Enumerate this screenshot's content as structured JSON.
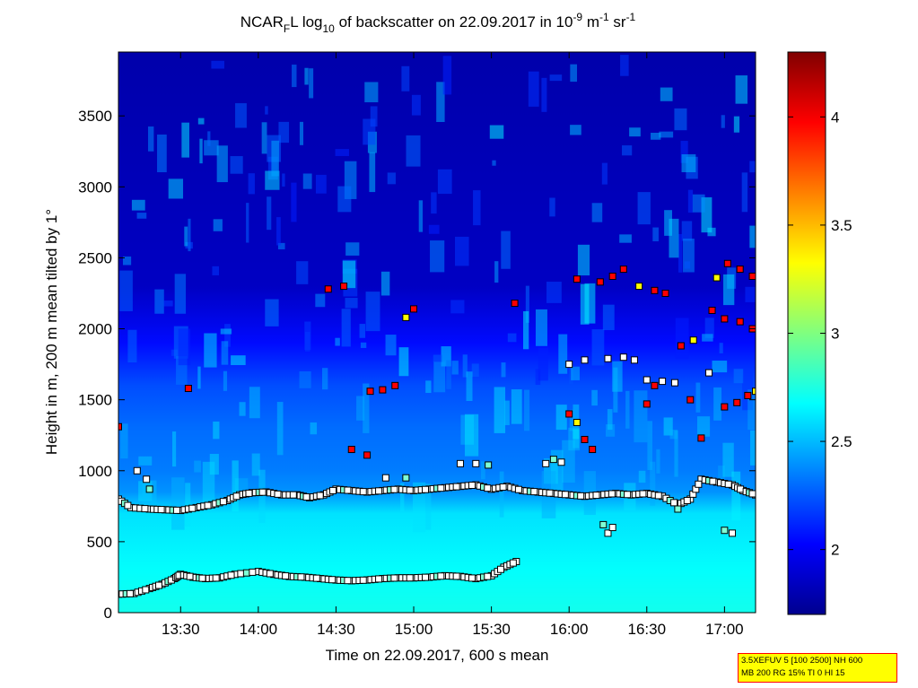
{
  "chart_data": {
    "type": "heatmap",
    "title": {
      "part1": "NCAR",
      "sub1": "F",
      "part2": "L log",
      "sub2": "10",
      "part3": " of backscatter on 22.09.2017 in 10",
      "sup1": "-9",
      "part4": " m",
      "sup2": "-1",
      "part5": " sr",
      "sup3": "-1"
    },
    "xlabel": "Time on 22.09.2017, 600 s mean",
    "ylabel": "Height in m, 200 m mean tilted by 1°",
    "xlim_hours": [
      13.1,
      17.2
    ],
    "ylim": [
      0,
      3950
    ],
    "x_ticks": [
      {
        "value": 13.5,
        "label": "13:30"
      },
      {
        "value": 14.0,
        "label": "14:00"
      },
      {
        "value": 14.5,
        "label": "14:30"
      },
      {
        "value": 15.0,
        "label": "15:00"
      },
      {
        "value": 15.5,
        "label": "15:30"
      },
      {
        "value": 16.0,
        "label": "16:00"
      },
      {
        "value": 16.5,
        "label": "16:30"
      },
      {
        "value": 17.0,
        "label": "17:00"
      }
    ],
    "y_ticks": [
      {
        "value": 0,
        "label": "0"
      },
      {
        "value": 500,
        "label": "500"
      },
      {
        "value": 1000,
        "label": "1000"
      },
      {
        "value": 1500,
        "label": "1500"
      },
      {
        "value": 2000,
        "label": "2000"
      },
      {
        "value": 2500,
        "label": "2500"
      },
      {
        "value": 3000,
        "label": "3000"
      },
      {
        "value": 3500,
        "label": "3500"
      }
    ],
    "colorbar": {
      "range": [
        1.7,
        4.3
      ],
      "colormap": "jet",
      "ticks": [
        {
          "value": 2,
          "label": "2"
        },
        {
          "value": 2.5,
          "label": "2.5"
        },
        {
          "value": 3,
          "label": "3"
        },
        {
          "value": 3.5,
          "label": "3.5"
        },
        {
          "value": 4,
          "label": "4"
        }
      ]
    },
    "background_profile": [
      {
        "height": 0,
        "value": 2.72
      },
      {
        "height": 300,
        "value": 2.68
      },
      {
        "height": 700,
        "value": 2.6
      },
      {
        "height": 850,
        "value": 2.4
      },
      {
        "height": 1000,
        "value": 2.34
      },
      {
        "height": 1300,
        "value": 2.3
      },
      {
        "height": 1600,
        "value": 2.22
      },
      {
        "height": 1900,
        "value": 2.05
      },
      {
        "height": 2300,
        "value": 1.85
      },
      {
        "height": 3950,
        "value": 1.78
      }
    ],
    "series": [
      {
        "marker": "square",
        "points": [
          [
            13.1,
            130
          ],
          [
            13.2,
            135
          ],
          [
            13.3,
            170
          ],
          [
            13.38,
            200
          ],
          [
            13.46,
            240
          ],
          [
            13.5,
            270
          ],
          [
            13.58,
            250
          ],
          [
            13.66,
            240
          ],
          [
            13.75,
            245
          ],
          [
            13.85,
            270
          ],
          [
            14.0,
            290
          ],
          [
            14.1,
            270
          ],
          [
            14.2,
            255
          ],
          [
            14.3,
            250
          ],
          [
            14.4,
            240
          ],
          [
            14.5,
            230
          ],
          [
            14.6,
            225
          ],
          [
            14.7,
            230
          ],
          [
            14.8,
            240
          ],
          [
            14.9,
            245
          ],
          [
            15.0,
            245
          ],
          [
            15.1,
            250
          ],
          [
            15.2,
            260
          ],
          [
            15.3,
            255
          ],
          [
            15.4,
            240
          ],
          [
            15.5,
            260
          ],
          [
            15.58,
            320
          ],
          [
            15.66,
            360
          ]
        ]
      },
      {
        "marker": "square",
        "points": [
          [
            13.1,
            800
          ],
          [
            13.18,
            740
          ],
          [
            13.3,
            730
          ],
          [
            13.4,
            725
          ],
          [
            13.5,
            720
          ],
          [
            13.6,
            740
          ],
          [
            13.7,
            760
          ],
          [
            13.8,
            790
          ],
          [
            13.88,
            830
          ],
          [
            13.96,
            845
          ],
          [
            14.05,
            850
          ],
          [
            14.15,
            830
          ],
          [
            14.25,
            830
          ],
          [
            14.33,
            810
          ],
          [
            14.42,
            830
          ],
          [
            14.5,
            870
          ],
          [
            14.6,
            860
          ],
          [
            14.7,
            850
          ],
          [
            14.8,
            860
          ],
          [
            14.9,
            870
          ],
          [
            15.0,
            860
          ],
          [
            15.1,
            870
          ],
          [
            15.2,
            880
          ],
          [
            15.3,
            890
          ],
          [
            15.4,
            900
          ],
          [
            15.5,
            870
          ],
          [
            15.6,
            890
          ],
          [
            15.7,
            860
          ],
          [
            15.8,
            850
          ],
          [
            15.9,
            840
          ],
          [
            16.0,
            830
          ],
          [
            16.1,
            820
          ],
          [
            16.2,
            830
          ],
          [
            16.3,
            840
          ],
          [
            16.4,
            830
          ],
          [
            16.5,
            840
          ],
          [
            16.6,
            820
          ],
          [
            16.7,
            760
          ],
          [
            16.78,
            800
          ],
          [
            16.85,
            940
          ],
          [
            16.95,
            920
          ],
          [
            17.05,
            900
          ],
          [
            17.12,
            860
          ],
          [
            17.2,
            830
          ]
        ]
      },
      {
        "marker": "square",
        "points": [
          [
            13.1,
            1310
          ],
          [
            13.22,
            1000
          ],
          [
            13.28,
            940
          ],
          [
            13.3,
            870
          ],
          [
            13.55,
            1580
          ],
          [
            14.45,
            2280
          ],
          [
            14.55,
            2300
          ],
          [
            14.72,
            1560
          ],
          [
            14.8,
            1570
          ],
          [
            14.88,
            1600
          ],
          [
            14.95,
            2080
          ],
          [
            15.0,
            2140
          ],
          [
            14.6,
            1150
          ],
          [
            14.7,
            1110
          ],
          [
            14.82,
            950
          ],
          [
            14.95,
            950
          ],
          [
            15.3,
            1050
          ],
          [
            15.4,
            1050
          ],
          [
            15.48,
            1040
          ],
          [
            15.65,
            2180
          ],
          [
            15.85,
            1050
          ],
          [
            15.9,
            1080
          ],
          [
            15.95,
            1060
          ],
          [
            16.0,
            1400
          ],
          [
            16.05,
            1340
          ],
          [
            16.1,
            1220
          ],
          [
            16.15,
            1150
          ],
          [
            16.05,
            2350
          ],
          [
            16.2,
            2330
          ],
          [
            16.28,
            2370
          ],
          [
            16.35,
            2420
          ],
          [
            16.45,
            2300
          ],
          [
            16.55,
            2270
          ],
          [
            16.62,
            2250
          ],
          [
            16.0,
            1750
          ],
          [
            16.1,
            1780
          ],
          [
            16.25,
            1790
          ],
          [
            16.35,
            1800
          ],
          [
            16.42,
            1780
          ],
          [
            16.5,
            1640
          ],
          [
            16.6,
            1630
          ],
          [
            16.68,
            1620
          ],
          [
            16.5,
            1470
          ],
          [
            16.55,
            1600
          ],
          [
            16.72,
            1880
          ],
          [
            16.8,
            1920
          ],
          [
            16.78,
            1500
          ],
          [
            16.85,
            1230
          ],
          [
            16.92,
            2130
          ],
          [
            17.0,
            2070
          ],
          [
            17.1,
            2050
          ],
          [
            17.18,
            2000
          ],
          [
            16.95,
            2360
          ],
          [
            17.02,
            2460
          ],
          [
            17.1,
            2420
          ],
          [
            17.18,
            2370
          ],
          [
            17.0,
            1450
          ],
          [
            17.08,
            1480
          ],
          [
            17.15,
            1530
          ],
          [
            17.2,
            1560
          ],
          [
            16.22,
            620
          ],
          [
            16.25,
            560
          ],
          [
            16.28,
            600
          ],
          [
            17.0,
            580
          ],
          [
            17.05,
            560
          ],
          [
            16.9,
            1690
          ],
          [
            16.7,
            730
          ]
        ]
      }
    ]
  },
  "info_box": {
    "line1": "3.5XEFUV 5 [100 2500] NH 600",
    "line2": "MB 200 RG 15% TI 0 HI 15"
  }
}
